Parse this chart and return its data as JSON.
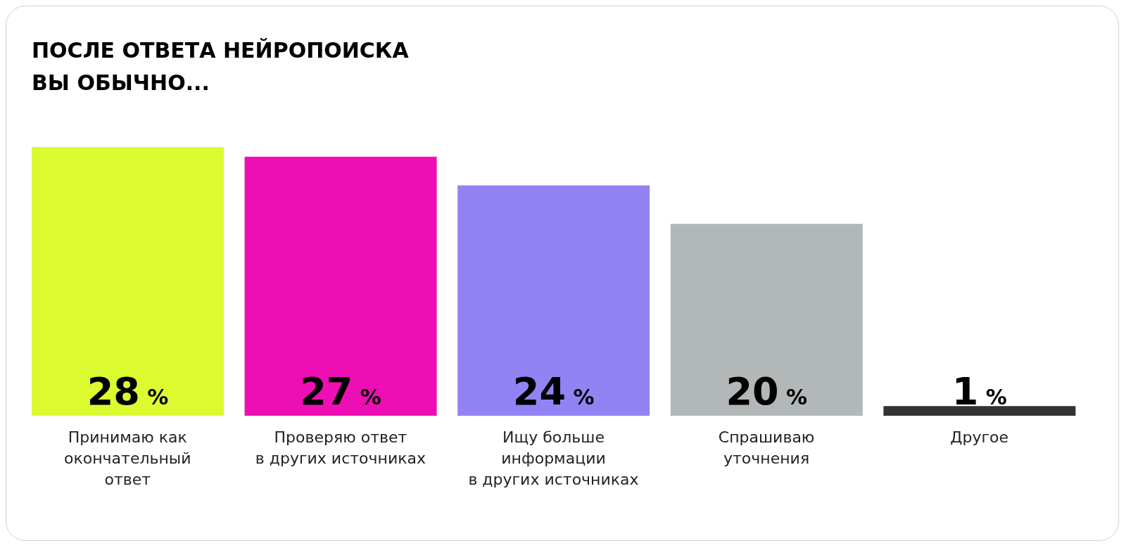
{
  "chart_data": {
    "type": "bar",
    "title": "ПОСЛЕ ОТВЕТА НЕЙРОПОИСКА\nВЫ ОБЫЧНО...",
    "categories": [
      "Принимаю как\nокончательный\nответ",
      "Проверяю ответ\nв других источниках",
      "Ищу больше\nинформации\nв других источниках",
      "Спрашиваю\nуточнения",
      "Другое"
    ],
    "values": [
      28,
      27,
      24,
      20,
      1
    ],
    "colors": [
      "#dcfa30",
      "#ee0fb4",
      "#9283f4",
      "#b2b7b8",
      "#333333"
    ],
    "value_labels": [
      "28 %",
      "27 %",
      "24 %",
      "20 %",
      "1 %"
    ],
    "grid": false,
    "legend": false
  }
}
